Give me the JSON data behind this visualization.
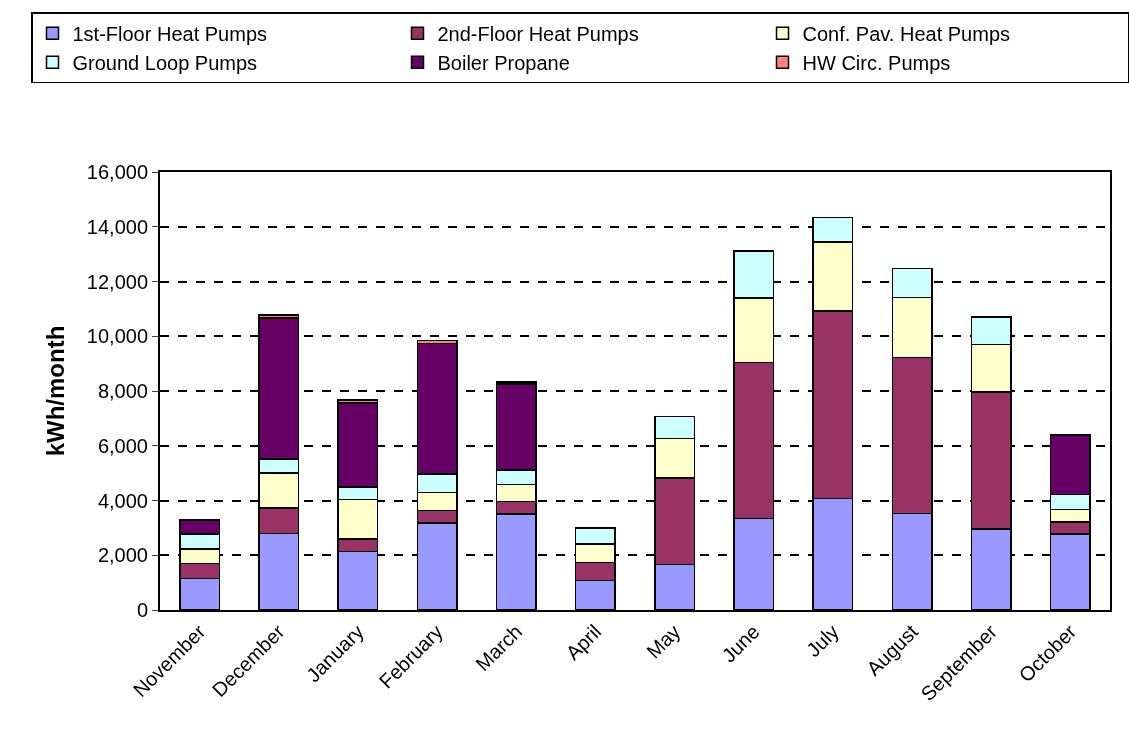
{
  "chart_data": {
    "type": "bar",
    "stacked": true,
    "ylabel": "kWh/month",
    "categories": [
      "November",
      "December",
      "January",
      "February",
      "March",
      "April",
      "May",
      "June",
      "July",
      "August",
      "September",
      "October"
    ],
    "series": [
      {
        "name": "1st-Floor Heat Pumps",
        "color": "#9999ff",
        "values": [
          1150,
          2800,
          2130,
          3170,
          3500,
          1080,
          1660,
          3350,
          4070,
          3530,
          2950,
          2780
        ]
      },
      {
        "name": "2nd-Floor Heat Pumps",
        "color": "#993366",
        "values": [
          550,
          920,
          470,
          470,
          460,
          650,
          3170,
          5690,
          6850,
          5700,
          5010,
          430
        ]
      },
      {
        "name": "Conf. Pav. Heat Pumps",
        "color": "#ffffcc",
        "values": [
          530,
          1280,
          1440,
          650,
          620,
          680,
          1440,
          2350,
          2520,
          2190,
          1730,
          470
        ]
      },
      {
        "name": "Ground Loop Pumps",
        "color": "#ccffff",
        "values": [
          540,
          510,
          460,
          680,
          540,
          590,
          790,
          1730,
          900,
          1050,
          1010,
          540
        ]
      },
      {
        "name": "Boiler Propane",
        "color": "#660066",
        "values": [
          510,
          5160,
          3070,
          4760,
          3130,
          null,
          null,
          null,
          null,
          null,
          null,
          2160
        ]
      },
      {
        "name": "HW Circ. Pumps",
        "color": "#ff8080",
        "values": [
          null,
          110,
          110,
          110,
          70,
          null,
          null,
          null,
          null,
          null,
          null,
          30
        ]
      }
    ],
    "ylim": [
      0,
      16000
    ],
    "yticks": [
      {
        "value": 0,
        "label": "0"
      },
      {
        "value": 2000,
        "label": "2,000"
      },
      {
        "value": 4000,
        "label": "4,000"
      },
      {
        "value": 6000,
        "label": "6,000"
      },
      {
        "value": 8000,
        "label": "8,000"
      },
      {
        "value": 10000,
        "label": "10,000"
      },
      {
        "value": 12000,
        "label": "12,000"
      },
      {
        "value": 14000,
        "label": "14,000"
      },
      {
        "value": 16000,
        "label": "16,000"
      }
    ],
    "grid": "y",
    "legend": "top"
  }
}
